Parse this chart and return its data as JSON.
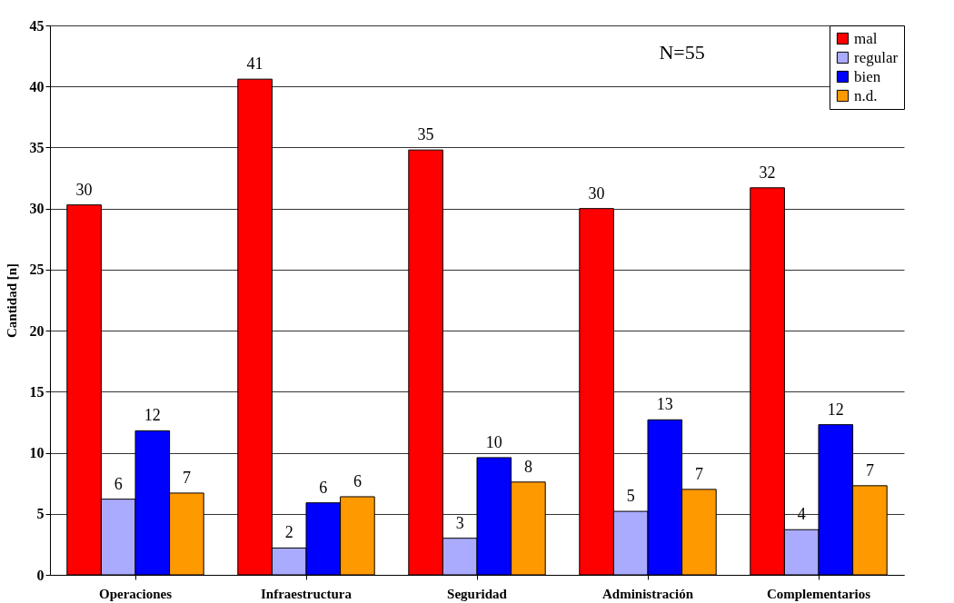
{
  "chart_data": {
    "type": "bar",
    "ylabel": "Cantidad [n]",
    "categories": [
      "Operaciones",
      "Infraestructura",
      "Seguridad",
      "Administración",
      "Complementarios"
    ],
    "series": [
      {
        "name": "mal",
        "color": "#ff0000",
        "values": [
          30.3,
          40.6,
          34.8,
          30.0,
          31.7
        ],
        "value_labels": [
          "30",
          "41",
          "35",
          "30",
          "32"
        ]
      },
      {
        "name": "regular",
        "color": "#aaaaff",
        "values": [
          6.2,
          2.2,
          3.0,
          5.2,
          3.7
        ],
        "value_labels": [
          "6",
          "2",
          "3",
          "5",
          "4"
        ]
      },
      {
        "name": "bien",
        "color": "#0000ff",
        "values": [
          11.8,
          5.9,
          9.6,
          12.7,
          12.3
        ],
        "value_labels": [
          "12",
          "6",
          "10",
          "13",
          "12"
        ]
      },
      {
        "name": "n.d.",
        "color": "#ff9900",
        "values": [
          6.7,
          6.4,
          7.6,
          7.0,
          7.3
        ],
        "value_labels": [
          "7",
          "6",
          "8",
          "7",
          "7"
        ]
      }
    ],
    "ylim": [
      0,
      45
    ],
    "yticks": [
      0,
      5,
      10,
      15,
      20,
      25,
      30,
      35,
      40,
      45
    ],
    "grid": "y",
    "legend": "top right",
    "annotations": [
      "N=55"
    ]
  }
}
